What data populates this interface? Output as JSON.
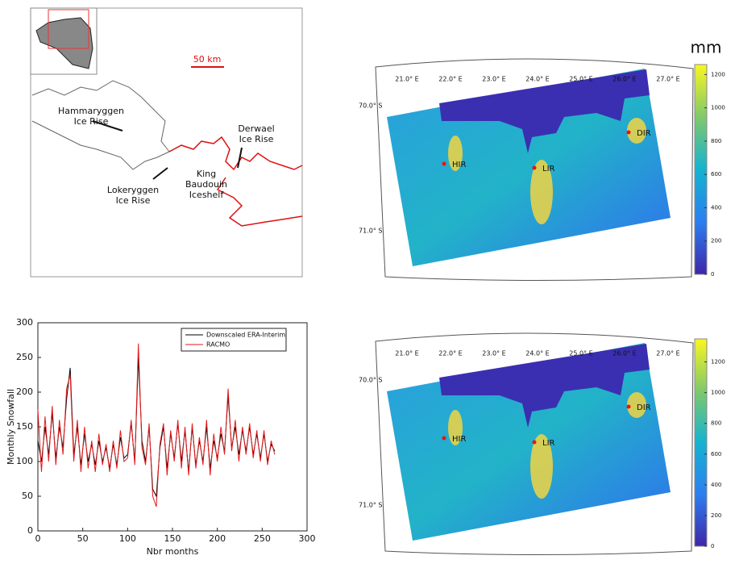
{
  "chart_data": {
    "type": "line",
    "xlabel": "Nbr months",
    "ylabel": "Monthly Snowfall",
    "x": [
      0,
      4,
      8,
      12,
      16,
      20,
      24,
      28,
      32,
      36,
      40,
      44,
      48,
      52,
      56,
      60,
      64,
      68,
      72,
      76,
      80,
      84,
      88,
      92,
      96,
      100,
      104,
      108,
      112,
      116,
      120,
      124,
      128,
      132,
      136,
      140,
      144,
      148,
      152,
      156,
      160,
      164,
      168,
      172,
      176,
      180,
      184,
      188,
      192,
      196,
      200,
      204,
      208,
      212,
      216,
      220,
      224,
      228,
      232,
      236,
      240,
      244,
      248,
      252,
      256,
      260,
      264
    ],
    "series": [
      {
        "name": "Downscaled ERA-Interim",
        "color": "#000000",
        "values": [
          130,
          100,
          150,
          110,
          170,
          105,
          150,
          120,
          190,
          235,
          110,
          150,
          95,
          140,
          100,
          125,
          95,
          130,
          100,
          120,
          90,
          125,
          95,
          135,
          105,
          110,
          155,
          100,
          250,
          130,
          100,
          150,
          60,
          50,
          120,
          150,
          90,
          140,
          105,
          155,
          100,
          145,
          85,
          150,
          95,
          130,
          100,
          150,
          90,
          130,
          105,
          140,
          115,
          195,
          120,
          150,
          110,
          145,
          115,
          150,
          110,
          140,
          105,
          140,
          100,
          125,
          115
        ]
      },
      {
        "name": "RACMO",
        "color": "#e41a1c",
        "values": [
          175,
          85,
          165,
          100,
          180,
          95,
          160,
          110,
          205,
          225,
          100,
          160,
          85,
          150,
          90,
          130,
          85,
          140,
          95,
          125,
          85,
          130,
          90,
          145,
          100,
          105,
          160,
          95,
          270,
          120,
          95,
          155,
          50,
          35,
          125,
          155,
          80,
          145,
          100,
          160,
          90,
          150,
          80,
          155,
          90,
          135,
          95,
          160,
          80,
          140,
          100,
          150,
          110,
          205,
          115,
          160,
          100,
          150,
          110,
          155,
          105,
          145,
          100,
          145,
          95,
          130,
          110
        ]
      }
    ],
    "xlim": [
      0,
      300
    ],
    "xticks": [
      0,
      50,
      100,
      150,
      200,
      250,
      300
    ],
    "ylim": [
      0,
      300
    ],
    "yticks": [
      0,
      50,
      100,
      150,
      200,
      250,
      300
    ],
    "legend": "upper right"
  },
  "map": {
    "scale": "50 km",
    "labels": [
      [
        "Hammaryggen",
        "Ice Rise"
      ],
      [
        "Derwael",
        "Ice Rise"
      ],
      [
        "King",
        "Baudouin",
        "Iceshelf"
      ],
      [
        "Lokeryggen",
        "Ice Rise"
      ]
    ]
  },
  "heatmaps": [
    {
      "unit": "mm",
      "lon_labels": [
        "21.0° E",
        "22.0° E",
        "23.0° E",
        "24.0° E",
        "25.0° E",
        "26.0° E",
        "27.0° E"
      ],
      "lat_labels": [
        "70.0° S",
        "71.0° S"
      ],
      "sites": [
        "HIR",
        "LIR",
        "DIR"
      ],
      "colorbar": {
        "lim": [
          0,
          1260
        ],
        "ticks": [
          0,
          200,
          400,
          600,
          800,
          1000,
          1200
        ]
      }
    },
    {
      "lon_labels": [
        "21.0° E",
        "22.0° E",
        "23.0° E",
        "24.0° E",
        "25.0° E",
        "26.0° E",
        "27.0° E"
      ],
      "lat_labels": [
        "70.0° S",
        "71.0° S"
      ],
      "sites": [
        "HIR",
        "LIR",
        "DIR"
      ],
      "colorbar": {
        "lim": [
          0,
          1350
        ],
        "ticks": [
          0,
          200,
          400,
          600,
          800,
          1000,
          1200
        ]
      }
    }
  ]
}
